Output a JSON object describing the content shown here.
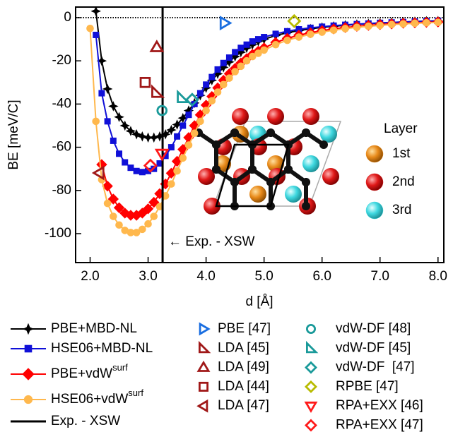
{
  "chart_data": {
    "type": "line",
    "xlabel": "d [Å]",
    "ylabel": "BE [meV/C]",
    "xlim": [
      1.75,
      8.1
    ],
    "ylim": [
      -113.4,
      4.9
    ],
    "xticks": [
      {
        "value": 2,
        "label": "2.0"
      },
      {
        "value": 3,
        "label": "3.0"
      },
      {
        "value": 4,
        "label": "4.0"
      },
      {
        "value": 5,
        "label": "5.0"
      },
      {
        "value": 6,
        "label": "6.0"
      },
      {
        "value": 7,
        "label": "7.0"
      },
      {
        "value": 8,
        "label": "8.0"
      }
    ],
    "yticks": [
      0,
      -20,
      -40,
      -60,
      -80,
      -100
    ],
    "zero_line": true,
    "x": [
      2.0,
      2.1,
      2.2,
      2.3,
      2.4,
      2.5,
      2.6,
      2.7,
      2.8,
      2.9,
      3.0,
      3.1,
      3.2,
      3.3,
      3.4,
      3.5,
      3.6,
      3.7,
      3.8,
      3.9,
      4.0,
      4.1,
      4.2,
      4.3,
      4.4,
      4.5,
      4.6,
      4.7,
      4.8,
      4.9,
      5.0,
      5.2,
      5.4,
      5.6,
      5.8,
      6.0,
      6.2,
      6.4,
      6.6,
      6.8,
      7.0,
      7.2,
      7.4,
      7.6,
      7.8,
      8.0
    ],
    "series": [
      {
        "name": "PBE+MBD-NL",
        "color": "#000000",
        "marker": "star4",
        "values": [
          null,
          3,
          -20,
          -33,
          -41,
          -46,
          -50,
          -52.5,
          -54,
          -55,
          -55.5,
          -55.5,
          -55,
          -54,
          -52,
          -49.5,
          -46.5,
          -43,
          -39.5,
          -36,
          -32.5,
          -29,
          -26,
          -23,
          -20.5,
          -18,
          -16,
          -14,
          -12.5,
          -11,
          -10,
          -8.3,
          -7,
          -6,
          -5.2,
          -4.5,
          -4,
          -3.5,
          -3.1,
          -2.8,
          -2.5,
          -2.2,
          -2,
          -1.8,
          -1.6,
          -1.5
        ]
      },
      {
        "name": "HSE06+MBD-NL",
        "color": "#1010d8",
        "marker": "square",
        "values": [
          null,
          -8,
          -35,
          -48,
          -57,
          -63,
          -67,
          -69.5,
          -71,
          -71.5,
          -71,
          -70,
          -67.5,
          -64,
          -60,
          -55,
          -50,
          -45,
          -40,
          -35,
          -31,
          -27.5,
          -24,
          -21,
          -18.5,
          -16,
          -14,
          -12.5,
          -11,
          -10,
          -9,
          -7.5,
          -6.3,
          -5.4,
          -4.7,
          -4.2,
          -3.7,
          -3.3,
          -3,
          -2.7,
          -2.4,
          -2.2,
          -2,
          -1.8,
          -1.6,
          -1.5
        ]
      },
      {
        "name": "PBE+vdW",
        "name_superscript": "surf",
        "color": "#ff0000",
        "marker": "diamond",
        "values": [
          null,
          null,
          -68,
          -78,
          -84,
          -88,
          -90.5,
          -91.5,
          -91.5,
          -90.5,
          -88.5,
          -85.5,
          -81.5,
          -77,
          -72,
          -66.5,
          -61,
          -55.5,
          -50,
          -45,
          -40.5,
          -36.5,
          -32.5,
          -29,
          -26,
          -23.5,
          -21,
          -19,
          -17,
          -15.5,
          -14,
          -11.5,
          -9.6,
          -8.1,
          -7,
          -6,
          -5.2,
          -4.6,
          -4,
          -3.6,
          -3.2,
          -2.9,
          -2.6,
          -2.4,
          -2.2,
          -2
        ]
      },
      {
        "name": "HSE06+vdW",
        "name_superscript": "surf",
        "color": "#ffb84d",
        "marker": "circle",
        "values": [
          -5,
          -48,
          -75,
          -86,
          -92,
          -96,
          -98.5,
          -99.5,
          -99.5,
          -98,
          -95.5,
          -92,
          -87.5,
          -82.5,
          -77,
          -71,
          -65,
          -59,
          -53.5,
          -48,
          -43,
          -38.5,
          -34.5,
          -31,
          -28,
          -25,
          -22.5,
          -20,
          -18,
          -16.5,
          -15,
          -12.5,
          -10.5,
          -9,
          -7.7,
          -6.7,
          -5.8,
          -5.1,
          -4.5,
          -4,
          -3.6,
          -3.2,
          -2.9,
          -2.6,
          -2.4,
          -2.2
        ]
      }
    ],
    "vline": {
      "name": "Exp. - XSW",
      "x": 3.25,
      "color": "#000000"
    },
    "annotation": "← Exp. - XSW",
    "points": [
      {
        "name": "PBE [47]",
        "color": "#1a6ee0",
        "marker": "triangle-right",
        "x": 4.32,
        "y": -2.5
      },
      {
        "name": "LDA [45]",
        "color": "#a01818",
        "marker": "triangle-corner",
        "x": 3.15,
        "y": -34.6
      },
      {
        "name": "LDA [49]",
        "color": "#a01818",
        "marker": "triangle-up",
        "x": 3.15,
        "y": -13.7
      },
      {
        "name": "LDA [44]",
        "color": "#a01818",
        "marker": "square",
        "x": 2.95,
        "y": -30
      },
      {
        "name": "LDA [47]",
        "color": "#a01818",
        "marker": "triangle-left",
        "x": 2.16,
        "y": -71.9
      },
      {
        "name": "vdW-DF [48]",
        "color": "#1a9a9a",
        "marker": "circle",
        "x": 3.24,
        "y": -43
      },
      {
        "name": "vdW-DF [45]",
        "color": "#1a9a9a",
        "marker": "triangle-corner",
        "x": 3.59,
        "y": -37
      },
      {
        "name": "vdW-DF  [47]",
        "color": "#1a9a9a",
        "marker": "diamond",
        "x": 3.76,
        "y": -38
      },
      {
        "name": "RPBE [47]",
        "color": "#b8bb00",
        "marker": "diamond",
        "x": 5.52,
        "y": -1.6
      },
      {
        "name": "RPA+EXX [46]",
        "color": "#ff1a1a",
        "marker": "triangle-down",
        "x": 3.24,
        "y": -63
      },
      {
        "name": "RPA+EXX [47]",
        "color": "#ff1a1a",
        "marker": "diamond",
        "x": 3.04,
        "y": -68.5
      }
    ],
    "inset_legend": {
      "title": "Layer",
      "items": [
        {
          "name": "1st",
          "color": "#e88a1a"
        },
        {
          "name": "2nd",
          "color": "#e01818"
        },
        {
          "name": "3rd",
          "color": "#3fd8e0"
        }
      ]
    }
  }
}
